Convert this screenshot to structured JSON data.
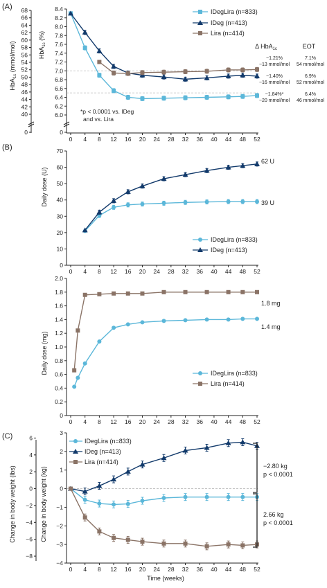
{
  "colors": {
    "idegLira": "#5bb7d9",
    "ideg": "#123a6b",
    "lira": "#8a7366",
    "grid": "#bbbbbb",
    "axis": "#222222"
  },
  "chart_data": [
    {
      "panel_label": "(A)",
      "type": "line",
      "ylabel_outer": "HbA",
      "ylabel_outer_sub": "1c",
      "ylabel_outer_unit": " (mmol/mol)",
      "ylabel_inner": "HbA",
      "ylabel_inner_sub": "1c",
      "ylabel_inner_unit": " (%)",
      "outer_ticks": [
        "0",
        "40",
        "42",
        "44",
        "46",
        "48",
        "50",
        "52",
        "54",
        "56",
        "58",
        "60",
        "62",
        "64",
        "66",
        "68"
      ],
      "inner_ticks": [
        "0",
        "6.0",
        "6.2",
        "6.4",
        "6.6",
        "6.8",
        "7.0",
        "7.2",
        "7.4",
        "7.6",
        "7.8",
        "8.0",
        "8.2",
        "8.4"
      ],
      "ylim": [
        6.0,
        8.4
      ],
      "x_ticks": [
        "0",
        "4",
        "8",
        "12",
        "16",
        "20",
        "24",
        "28",
        "32",
        "36",
        "40",
        "44",
        "48",
        "52"
      ],
      "reference_lines": [
        7.0,
        6.5
      ],
      "series": [
        {
          "name": "IDegLira (n=833)",
          "marker": "square",
          "color": "#5bb7d9",
          "x": [
            0,
            4,
            8,
            12,
            16,
            20,
            26,
            32,
            38,
            44,
            48,
            52
          ],
          "y": [
            8.3,
            7.52,
            6.9,
            6.55,
            6.4,
            6.37,
            6.38,
            6.39,
            6.4,
            6.41,
            6.42,
            6.44
          ]
        },
        {
          "name": "IDeg (n=413)",
          "marker": "triangle",
          "color": "#123a6b",
          "x": [
            0,
            4,
            8,
            12,
            16,
            20,
            26,
            32,
            38,
            44,
            48,
            52
          ],
          "y": [
            8.3,
            7.87,
            7.45,
            7.1,
            6.95,
            6.9,
            6.86,
            6.81,
            6.84,
            6.88,
            6.9,
            6.88
          ]
        },
        {
          "name": "Lira (n=414)",
          "marker": "square",
          "color": "#8a7366",
          "x": [
            8,
            12,
            16,
            20,
            26,
            32,
            38,
            44,
            48,
            52
          ],
          "y": [
            7.2,
            6.95,
            6.94,
            6.96,
            6.97,
            6.98,
            6.99,
            7.02,
            7.02,
            7.03
          ]
        }
      ],
      "legend": [
        "IDegLira (n=833)",
        "IDeg (n=413)",
        "Lira (n=414)"
      ],
      "table": {
        "header_delta": "Δ HbA",
        "header_delta_sub": "1c",
        "header_eot": "EOT",
        "rows": [
          {
            "delta_pct": "−1.21%",
            "delta_mmol": "−13 mmol/mol",
            "eot_pct": "7.1%",
            "eot_mmol": "54 mmol/mol"
          },
          {
            "delta_pct": "−1.40%",
            "delta_mmol": "−16 mmol/mol",
            "eot_pct": "6.9%",
            "eot_mmol": "52 mmol/mol"
          },
          {
            "delta_pct": "−1.84%*",
            "delta_mmol": "−20 mmol/mol",
            "eot_pct": "6.4%",
            "eot_mmol": "46 mmol/mol"
          }
        ]
      },
      "footnote_1": "*p < 0.0001 vs. IDeg",
      "footnote_2": "and vs. Lira"
    },
    {
      "panel_label": "(B)",
      "type": "line",
      "ylabel": "Daily dose (U)",
      "ylim": [
        0,
        70
      ],
      "y_ticks": [
        "0",
        "10",
        "20",
        "30",
        "40",
        "50",
        "60",
        "70"
      ],
      "x_ticks": [
        "0",
        "4",
        "8",
        "12",
        "16",
        "20",
        "24",
        "28",
        "32",
        "36",
        "40",
        "44",
        "48",
        "52"
      ],
      "series": [
        {
          "name": "IDegLira (n=833)",
          "marker": "circle",
          "color": "#5bb7d9",
          "x": [
            4,
            8,
            12,
            16,
            20,
            26,
            32,
            38,
            44,
            48,
            52
          ],
          "y": [
            21,
            30.5,
            35.5,
            37,
            37.5,
            38,
            38.5,
            38.8,
            39,
            39,
            39
          ]
        },
        {
          "name": "IDeg (n=413)",
          "marker": "triangle",
          "color": "#123a6b",
          "x": [
            4,
            8,
            12,
            16,
            20,
            26,
            32,
            38,
            44,
            48,
            52
          ],
          "y": [
            21.5,
            32.5,
            39.5,
            45,
            48.5,
            53,
            55.5,
            58,
            60,
            61,
            62
          ]
        }
      ],
      "end_labels": [
        "62 U",
        "39 U"
      ],
      "legend": [
        "IDegLira (n=833)",
        "IDeg (n=413)"
      ]
    },
    {
      "panel_label": "",
      "type": "line",
      "ylabel": "Daily dose (mg)",
      "ylim": [
        0,
        2.0
      ],
      "y_ticks": [
        "0",
        "0.2",
        "0.4",
        "0.6",
        "0.8",
        "1.0",
        "1.2",
        "1.4",
        "1.6",
        "1.8",
        "2.0"
      ],
      "x_ticks": [
        "0",
        "4",
        "8",
        "12",
        "16",
        "20",
        "24",
        "28",
        "32",
        "36",
        "40",
        "44",
        "48",
        "52"
      ],
      "series": [
        {
          "name": "IDegLira (n=833)",
          "marker": "circle",
          "color": "#5bb7d9",
          "x": [
            1,
            2,
            4,
            8,
            12,
            16,
            20,
            26,
            32,
            38,
            44,
            48,
            52
          ],
          "y": [
            0.42,
            0.55,
            0.76,
            1.08,
            1.28,
            1.33,
            1.36,
            1.38,
            1.39,
            1.4,
            1.4,
            1.41,
            1.41
          ]
        },
        {
          "name": "Lira (n=414)",
          "marker": "square",
          "color": "#8a7366",
          "x": [
            1,
            2,
            4,
            8,
            12,
            16,
            20,
            26,
            32,
            38,
            44,
            48,
            52
          ],
          "y": [
            0.66,
            1.24,
            1.76,
            1.77,
            1.78,
            1.78,
            1.78,
            1.8,
            1.8,
            1.8,
            1.8,
            1.8,
            1.8
          ]
        }
      ],
      "end_labels": [
        "1.8 mg",
        "1.4 mg"
      ],
      "legend": [
        "IDegLira (n=833)",
        "Lira (n=414)"
      ]
    },
    {
      "panel_label": "(C)",
      "type": "line",
      "ylabel_outer": "Change in body weight (lbs)",
      "ylabel_inner": "Change in body weight (kg)",
      "ylim": [
        -4,
        3
      ],
      "outer_ticks": [
        "−8",
        "−6",
        "−4",
        "−2",
        "0",
        "2",
        "4",
        "6"
      ],
      "inner_ticks": [
        "−4",
        "−3",
        "−2",
        "−1",
        "0",
        "1",
        "2",
        "3"
      ],
      "x_ticks": [
        "0",
        "4",
        "8",
        "12",
        "16",
        "20",
        "24",
        "28",
        "32",
        "36",
        "40",
        "44",
        "48",
        "52"
      ],
      "xlabel": "Time (weeks)",
      "series": [
        {
          "name": "IDegLira (n=833)",
          "marker": "circle",
          "color": "#5bb7d9",
          "x": [
            0,
            4,
            8,
            12,
            16,
            20,
            26,
            32,
            38,
            44,
            48,
            52
          ],
          "y": [
            0,
            -0.6,
            -0.8,
            -0.85,
            -0.82,
            -0.65,
            -0.5,
            -0.45,
            -0.45,
            -0.45,
            -0.45,
            -0.45
          ]
        },
        {
          "name": "IDeg (n=413)",
          "marker": "triangle",
          "color": "#123a6b",
          "x": [
            0,
            4,
            8,
            12,
            16,
            20,
            26,
            32,
            38,
            44,
            48,
            52
          ],
          "y": [
            0,
            -0.15,
            0.15,
            0.5,
            0.92,
            1.3,
            1.65,
            2.05,
            2.2,
            2.45,
            2.5,
            2.3
          ]
        },
        {
          "name": "Lira (n=414)",
          "marker": "square",
          "color": "#8a7366",
          "x": [
            0,
            4,
            8,
            12,
            16,
            20,
            26,
            32,
            38,
            44,
            48,
            52
          ],
          "y": [
            0,
            -1.55,
            -2.3,
            -2.65,
            -2.75,
            -2.85,
            -2.95,
            -2.95,
            -3.1,
            -3.0,
            -3.05,
            -3.0
          ]
        }
      ],
      "legend": [
        "IDegLira (n=833)",
        "IDeg (n=413)",
        "Lira (n=414)"
      ],
      "brackets": [
        {
          "line1": "−2.80 kg",
          "line2": "p < 0.0001"
        },
        {
          "line1": "2.66 kg",
          "line2": "p < 0.0001"
        }
      ]
    }
  ]
}
